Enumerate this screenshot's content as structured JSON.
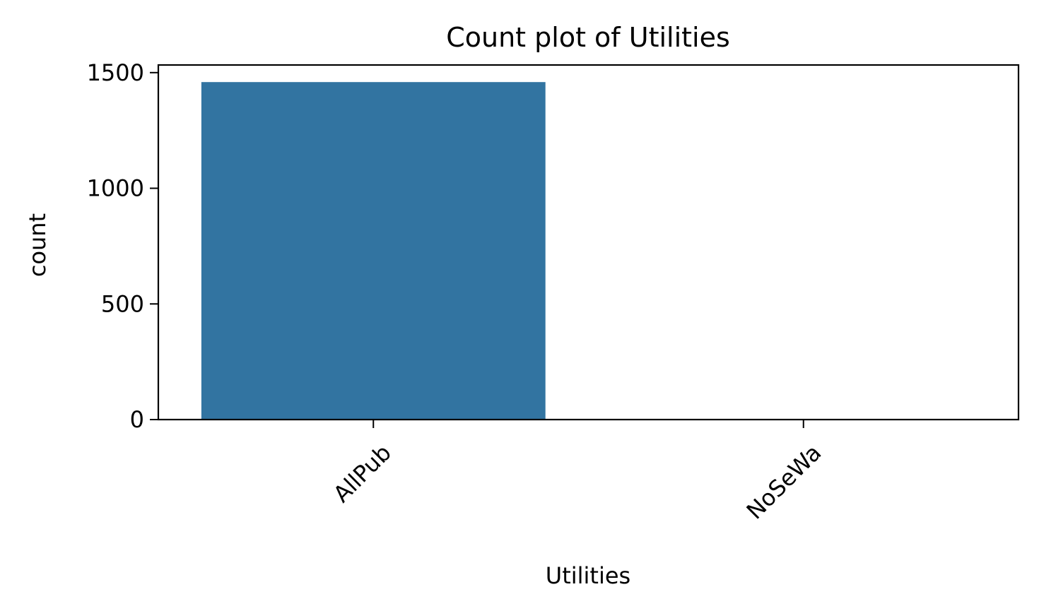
{
  "chart_data": {
    "type": "bar",
    "title": "Count plot of Utilities",
    "xlabel": "Utilities",
    "ylabel": "count",
    "categories": [
      "AllPub",
      "NoSeWa"
    ],
    "values": [
      1459,
      1
    ],
    "ylim": [
      0,
      1533
    ],
    "yticks": [
      0,
      500,
      1000,
      1500
    ],
    "x_tick_rotation": 45,
    "grid": false,
    "bar_color": "#3274a1"
  }
}
